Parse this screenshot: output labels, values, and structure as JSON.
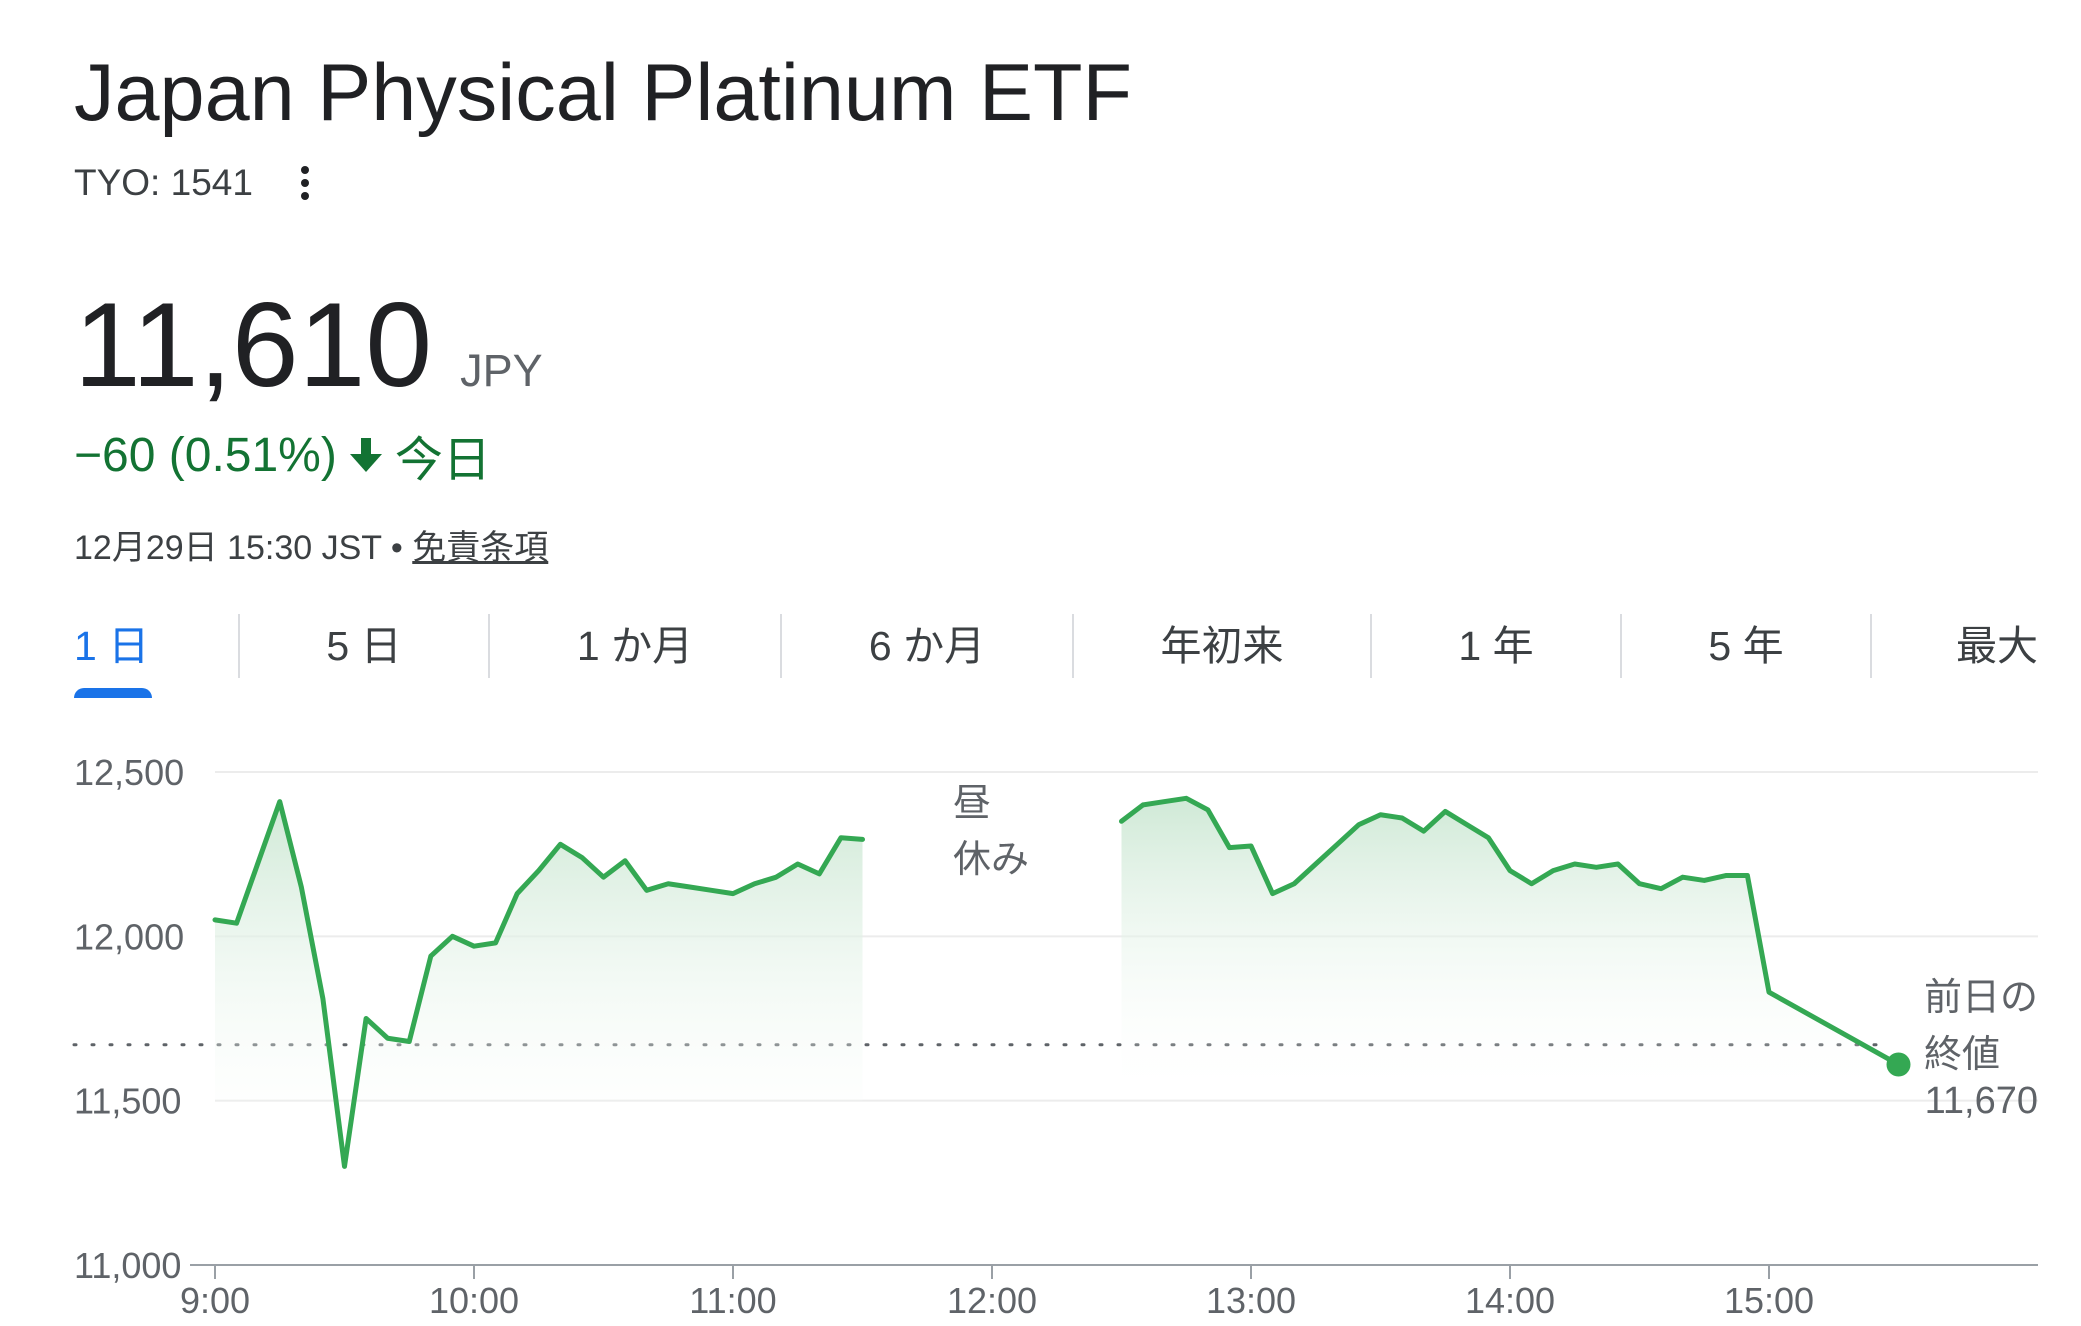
{
  "header": {
    "title": "Japan Physical Platinum ETF",
    "ticker": "TYO: 1541",
    "more_icon": "more-vert-icon"
  },
  "quote": {
    "price": "11,610",
    "currency": "JPY",
    "change": "−60 (0.51%)",
    "direction": "down",
    "period": "今日",
    "timestamp": "12月29日 15:30 JST",
    "separator": "•",
    "disclaimer": "免責条項"
  },
  "tabs": [
    {
      "label": "1 日",
      "active": true
    },
    {
      "label": "5 日",
      "active": false
    },
    {
      "label": "1 か月",
      "active": false
    },
    {
      "label": "6 か月",
      "active": false
    },
    {
      "label": "年初来",
      "active": false
    },
    {
      "label": "1 年",
      "active": false
    },
    {
      "label": "5 年",
      "active": false
    },
    {
      "label": "最大",
      "active": false
    }
  ],
  "colors": {
    "accent": "#1a73e8",
    "positive_line": "#34a853",
    "change_text": "#137333",
    "fill_top": "#cfe9d6"
  },
  "chart_data": {
    "type": "area",
    "xlabel": "",
    "ylabel": "",
    "x_ticks": [
      "9:00",
      "10:00",
      "11:00",
      "12:00",
      "13:00",
      "14:00",
      "15:00"
    ],
    "y_ticks": [
      "12,500",
      "12,000",
      "11,500",
      "11,000"
    ],
    "ylim": [
      11000,
      12500
    ],
    "lunch_break_label": [
      "昼",
      "休み"
    ],
    "prev_close_label": [
      "前日の",
      "終値",
      "11,670"
    ],
    "prev_close": 11670,
    "series": [
      {
        "segments": [
          [
            [
              "9:00",
              12050
            ],
            [
              "9:05",
              12040
            ],
            [
              "9:15",
              12410
            ],
            [
              "9:20",
              12150
            ],
            [
              "9:25",
              11810
            ],
            [
              "9:30",
              11300
            ],
            [
              "9:35",
              11750
            ],
            [
              "9:40",
              11690
            ],
            [
              "9:45",
              11680
            ],
            [
              "9:50",
              11940
            ],
            [
              "9:55",
              12000
            ],
            [
              "10:00",
              11970
            ],
            [
              "10:05",
              11980
            ],
            [
              "10:10",
              12130
            ],
            [
              "10:15",
              12200
            ],
            [
              "10:20",
              12280
            ],
            [
              "10:25",
              12240
            ],
            [
              "10:30",
              12180
            ],
            [
              "10:35",
              12230
            ],
            [
              "10:40",
              12140
            ],
            [
              "10:45",
              12160
            ],
            [
              "10:50",
              12150
            ],
            [
              "10:55",
              12140
            ],
            [
              "11:00",
              12130
            ],
            [
              "11:05",
              12160
            ],
            [
              "11:10",
              12180
            ],
            [
              "11:15",
              12220
            ],
            [
              "11:20",
              12190
            ],
            [
              "11:25",
              12300
            ],
            [
              "11:30",
              12295
            ]
          ],
          [
            [
              "12:30",
              12350
            ],
            [
              "12:35",
              12400
            ],
            [
              "12:40",
              12410
            ],
            [
              "12:45",
              12420
            ],
            [
              "12:50",
              12385
            ],
            [
              "12:55",
              12270
            ],
            [
              "13:00",
              12275
            ],
            [
              "13:05",
              12130
            ],
            [
              "13:10",
              12160
            ],
            [
              "13:15",
              12220
            ],
            [
              "13:20",
              12280
            ],
            [
              "13:25",
              12340
            ],
            [
              "13:30",
              12370
            ],
            [
              "13:35",
              12360
            ],
            [
              "13:40",
              12320
            ],
            [
              "13:45",
              12380
            ],
            [
              "13:50",
              12340
            ],
            [
              "13:55",
              12300
            ],
            [
              "14:00",
              12200
            ],
            [
              "14:05",
              12160
            ],
            [
              "14:10",
              12200
            ],
            [
              "14:15",
              12220
            ],
            [
              "14:20",
              12210
            ],
            [
              "14:25",
              12220
            ],
            [
              "14:30",
              12160
            ],
            [
              "14:35",
              12145
            ],
            [
              "14:40",
              12180
            ],
            [
              "14:45",
              12170
            ],
            [
              "14:50",
              12185
            ],
            [
              "14:55",
              12185
            ],
            [
              "15:00",
              11830
            ],
            [
              "15:30",
              11610
            ]
          ]
        ]
      }
    ],
    "grid": true
  }
}
